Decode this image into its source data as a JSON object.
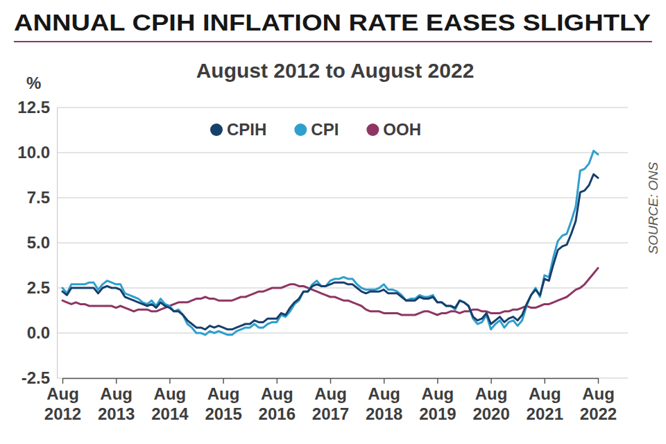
{
  "chart_data": {
    "type": "line",
    "title": "ANNUAL CPIH INFLATION RATE EASES SLIGHTLY",
    "subtitle": "August 2012 to August 2022",
    "y_label": "%",
    "source": "SOURCE: ONS",
    "legend": "top",
    "grid": true,
    "categories": [
      "Aug 2012",
      null,
      null,
      null,
      null,
      null,
      null,
      null,
      null,
      null,
      null,
      null,
      "Aug 2013",
      null,
      null,
      null,
      null,
      null,
      null,
      null,
      null,
      null,
      null,
      null,
      "Aug 2014",
      null,
      null,
      null,
      null,
      null,
      null,
      null,
      null,
      null,
      null,
      null,
      "Aug 2015",
      null,
      null,
      null,
      null,
      null,
      null,
      null,
      null,
      null,
      null,
      null,
      "Aug 2016",
      null,
      null,
      null,
      null,
      null,
      null,
      null,
      null,
      null,
      null,
      null,
      "Aug 2017",
      null,
      null,
      null,
      null,
      null,
      null,
      null,
      null,
      null,
      null,
      null,
      "Aug 2018",
      null,
      null,
      null,
      null,
      null,
      null,
      null,
      null,
      null,
      null,
      null,
      "Aug 2019",
      null,
      null,
      null,
      null,
      null,
      null,
      null,
      null,
      null,
      null,
      null,
      "Aug 2020",
      null,
      null,
      null,
      null,
      null,
      null,
      null,
      null,
      null,
      null,
      null,
      "Aug 2021",
      null,
      null,
      null,
      null,
      null,
      null,
      null,
      null,
      null,
      null,
      null,
      "Aug 2022"
    ],
    "ylim": [
      -2.5,
      12.5
    ],
    "yticks": [
      -2.5,
      {
        "value": 0,
        "label": "0.0"
      },
      2.5,
      {
        "value": 5,
        "label": "5.0"
      },
      7.5,
      {
        "value": 10,
        "label": "10.0"
      },
      12.5
    ],
    "series": [
      {
        "name": "CPIH",
        "color": "#173f6b",
        "values": [
          2.3,
          2.1,
          2.5,
          2.5,
          2.5,
          2.5,
          2.5,
          2.5,
          2.2,
          2.5,
          2.6,
          2.5,
          2.5,
          2.4,
          2.0,
          1.9,
          1.8,
          1.7,
          1.6,
          1.5,
          1.6,
          1.4,
          1.7,
          1.5,
          1.4,
          1.2,
          1.2,
          1.0,
          0.7,
          0.5,
          0.3,
          0.3,
          0.2,
          0.4,
          0.3,
          0.4,
          0.3,
          0.2,
          0.2,
          0.3,
          0.4,
          0.5,
          0.5,
          0.7,
          0.6,
          0.6,
          0.8,
          0.8,
          0.8,
          1.1,
          1.0,
          1.4,
          1.7,
          1.9,
          2.3,
          2.3,
          2.6,
          2.7,
          2.6,
          2.6,
          2.7,
          2.8,
          2.8,
          2.8,
          2.7,
          2.7,
          2.5,
          2.3,
          2.2,
          2.3,
          2.3,
          2.3,
          2.4,
          2.2,
          2.2,
          2.2,
          2.0,
          1.8,
          1.8,
          1.8,
          2.0,
          1.9,
          1.9,
          2.0,
          1.7,
          1.7,
          1.5,
          1.5,
          1.4,
          1.8,
          1.7,
          1.5,
          0.9,
          0.7,
          0.8,
          1.1,
          0.5,
          0.7,
          0.9,
          0.6,
          0.8,
          0.9,
          0.7,
          1.0,
          1.6,
          2.1,
          2.4,
          2.1,
          3.0,
          2.9,
          3.8,
          4.6,
          4.8,
          4.9,
          5.5,
          6.2,
          7.8,
          7.9,
          8.2,
          8.8,
          8.6
        ]
      },
      {
        "name": "CPI",
        "color": "#2f9fce",
        "values": [
          2.5,
          2.2,
          2.7,
          2.7,
          2.7,
          2.7,
          2.8,
          2.8,
          2.4,
          2.7,
          2.9,
          2.8,
          2.7,
          2.7,
          2.2,
          2.1,
          2.0,
          1.9,
          1.7,
          1.6,
          1.8,
          1.5,
          1.9,
          1.6,
          1.5,
          1.2,
          1.3,
          1.0,
          0.5,
          0.3,
          0.0,
          0.0,
          -0.1,
          0.1,
          0.0,
          0.1,
          0.0,
          -0.1,
          -0.1,
          0.1,
          0.2,
          0.3,
          0.3,
          0.5,
          0.3,
          0.3,
          0.5,
          0.6,
          0.6,
          1.0,
          0.9,
          1.2,
          1.6,
          1.8,
          2.3,
          2.3,
          2.7,
          2.9,
          2.6,
          2.6,
          2.9,
          3.0,
          3.0,
          3.1,
          3.0,
          3.0,
          2.7,
          2.5,
          2.4,
          2.4,
          2.4,
          2.5,
          2.7,
          2.4,
          2.4,
          2.3,
          2.1,
          1.8,
          1.9,
          1.9,
          2.1,
          2.0,
          2.0,
          2.1,
          1.7,
          1.7,
          1.5,
          1.5,
          1.3,
          1.8,
          1.7,
          1.5,
          0.8,
          0.5,
          0.6,
          1.0,
          0.2,
          0.5,
          0.7,
          0.3,
          0.6,
          0.7,
          0.4,
          0.7,
          1.5,
          2.1,
          2.5,
          2.0,
          3.2,
          3.1,
          4.2,
          5.1,
          5.4,
          5.5,
          6.2,
          7.0,
          9.0,
          9.1,
          9.4,
          10.1,
          9.9
        ]
      },
      {
        "name": "OOH",
        "color": "#8e3563",
        "values": [
          1.8,
          1.7,
          1.6,
          1.7,
          1.6,
          1.6,
          1.5,
          1.5,
          1.5,
          1.5,
          1.5,
          1.5,
          1.4,
          1.5,
          1.4,
          1.3,
          1.2,
          1.3,
          1.3,
          1.3,
          1.2,
          1.2,
          1.3,
          1.4,
          1.5,
          1.6,
          1.7,
          1.7,
          1.7,
          1.8,
          1.9,
          1.9,
          2.0,
          1.9,
          1.9,
          1.8,
          1.8,
          1.8,
          1.8,
          1.9,
          2.0,
          2.0,
          2.1,
          2.2,
          2.3,
          2.3,
          2.4,
          2.5,
          2.5,
          2.5,
          2.6,
          2.7,
          2.7,
          2.6,
          2.6,
          2.5,
          2.4,
          2.3,
          2.2,
          2.1,
          2.0,
          2.0,
          1.9,
          1.8,
          1.8,
          1.7,
          1.6,
          1.5,
          1.3,
          1.2,
          1.2,
          1.2,
          1.1,
          1.1,
          1.1,
          1.1,
          1.0,
          1.0,
          1.0,
          1.0,
          1.1,
          1.2,
          1.2,
          1.1,
          1.0,
          1.1,
          1.1,
          1.2,
          1.2,
          1.1,
          1.2,
          1.2,
          1.3,
          1.3,
          1.2,
          1.2,
          1.1,
          1.1,
          1.1,
          1.2,
          1.2,
          1.3,
          1.3,
          1.4,
          1.5,
          1.4,
          1.4,
          1.5,
          1.6,
          1.6,
          1.7,
          1.8,
          1.9,
          2.0,
          2.2,
          2.4,
          2.5,
          2.7,
          3.0,
          3.3,
          3.6
        ]
      }
    ]
  }
}
